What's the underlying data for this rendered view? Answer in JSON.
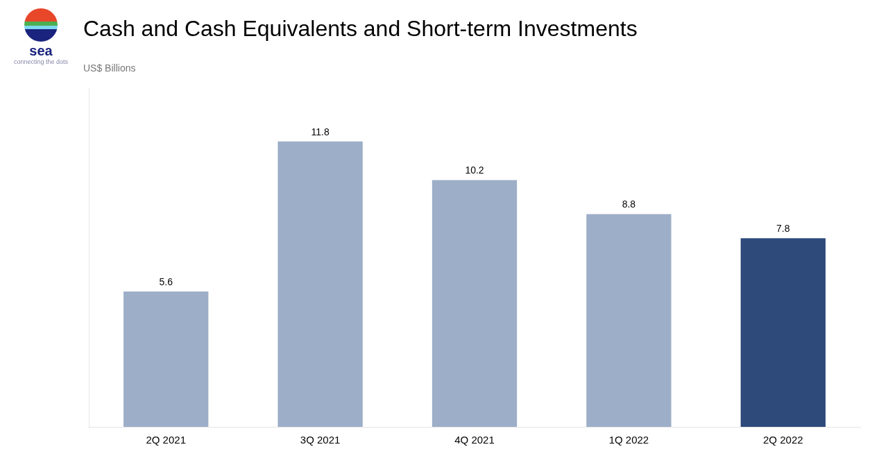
{
  "chart_data": {
    "type": "bar",
    "title": "Cash and Cash Equivalents and Short-term Investments",
    "subtitle": "US$ Billions",
    "annotations": [
      "sea",
      "connecting the dots"
    ],
    "categories": [
      "2Q 2021",
      "3Q 2021",
      "4Q 2021",
      "1Q 2022",
      "2Q 2022"
    ],
    "values": [
      5.6,
      11.8,
      10.2,
      8.8,
      7.8
    ],
    "colors": [
      "#9daec8",
      "#9daec8",
      "#9daec8",
      "#9daec8",
      "#2d4a7a"
    ],
    "ylim": [
      0,
      14
    ],
    "grid": false,
    "data_labels": true,
    "tick_labels": "x"
  }
}
